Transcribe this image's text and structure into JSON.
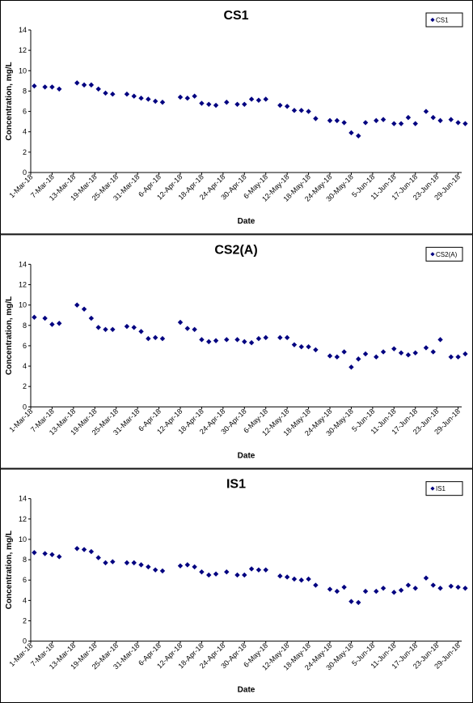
{
  "chart_data": [
    {
      "type": "scatter",
      "title": "CS1",
      "xlabel": "Date",
      "ylabel": "Concentration, mg/L",
      "ylim": [
        0,
        14
      ],
      "yticks": [
        0,
        2,
        4,
        6,
        8,
        10,
        12,
        14
      ],
      "xlim": [
        "2018-03-01",
        "2018-06-30"
      ],
      "xtick_labels": [
        "1-Mar-18",
        "7-Mar-18",
        "13-Mar-18",
        "19-Mar-18",
        "25-Mar-18",
        "31-Mar-18",
        "6-Apr-18",
        "12-Apr-18",
        "18-Apr-18",
        "24-Apr-18",
        "30-Apr-18",
        "6-May-18",
        "12-May-18",
        "18-May-18",
        "24-May-18",
        "30-May-18",
        "5-Jun-18",
        "11-Jun-18",
        "17-Jun-18",
        "23-Jun-18",
        "29-Jun-18"
      ],
      "legend_position": "top-right",
      "marker_color": "#000080",
      "series": [
        {
          "name": "CS1",
          "x": [
            "2018-03-02",
            "2018-03-05",
            "2018-03-07",
            "2018-03-09",
            "2018-03-14",
            "2018-03-16",
            "2018-03-18",
            "2018-03-20",
            "2018-03-22",
            "2018-03-24",
            "2018-03-28",
            "2018-03-30",
            "2018-04-01",
            "2018-04-03",
            "2018-04-05",
            "2018-04-07",
            "2018-04-12",
            "2018-04-14",
            "2018-04-16",
            "2018-04-18",
            "2018-04-20",
            "2018-04-22",
            "2018-04-25",
            "2018-04-28",
            "2018-04-30",
            "2018-05-02",
            "2018-05-04",
            "2018-05-06",
            "2018-05-10",
            "2018-05-12",
            "2018-05-14",
            "2018-05-16",
            "2018-05-18",
            "2018-05-20",
            "2018-05-24",
            "2018-05-26",
            "2018-05-28",
            "2018-05-30",
            "2018-06-01",
            "2018-06-03",
            "2018-06-06",
            "2018-06-08",
            "2018-06-11",
            "2018-06-13",
            "2018-06-15",
            "2018-06-17",
            "2018-06-20",
            "2018-06-22",
            "2018-06-24",
            "2018-06-27",
            "2018-06-29",
            "2018-07-01"
          ],
          "y": [
            8.5,
            8.4,
            8.4,
            8.2,
            8.8,
            8.6,
            8.6,
            8.2,
            7.8,
            7.7,
            7.7,
            7.5,
            7.3,
            7.2,
            7.0,
            6.9,
            7.4,
            7.3,
            7.5,
            6.8,
            6.7,
            6.6,
            6.9,
            6.7,
            6.7,
            7.2,
            7.1,
            7.2,
            6.6,
            6.5,
            6.1,
            6.1,
            6.0,
            5.3,
            5.1,
            5.1,
            4.9,
            3.9,
            3.6,
            4.9,
            5.1,
            5.2,
            4.8,
            4.8,
            5.4,
            4.8,
            6.0,
            5.4,
            5.1,
            5.2,
            4.9,
            4.8
          ]
        }
      ]
    },
    {
      "type": "scatter",
      "title": "CS2(A)",
      "xlabel": "Date",
      "ylabel": "Concentration, mg/L",
      "ylim": [
        0,
        14
      ],
      "yticks": [
        0,
        2,
        4,
        6,
        8,
        10,
        12,
        14
      ],
      "xlim": [
        "2018-03-01",
        "2018-06-30"
      ],
      "xtick_labels": [
        "1-Mar-18",
        "7-Mar-18",
        "13-Mar-18",
        "19-Mar-18",
        "25-Mar-18",
        "31-Mar-18",
        "6-Apr-18",
        "12-Apr-18",
        "18-Apr-18",
        "24-Apr-18",
        "30-Apr-18",
        "6-May-18",
        "12-May-18",
        "18-May-18",
        "24-May-18",
        "30-May-18",
        "5-Jun-18",
        "11-Jun-18",
        "17-Jun-18",
        "23-Jun-18",
        "29-Jun-18"
      ],
      "legend_position": "top-right",
      "marker_color": "#000080",
      "series": [
        {
          "name": "CS2(A)",
          "x": [
            "2018-03-02",
            "2018-03-05",
            "2018-03-07",
            "2018-03-09",
            "2018-03-14",
            "2018-03-16",
            "2018-03-18",
            "2018-03-20",
            "2018-03-22",
            "2018-03-24",
            "2018-03-28",
            "2018-03-30",
            "2018-04-01",
            "2018-04-03",
            "2018-04-05",
            "2018-04-07",
            "2018-04-12",
            "2018-04-14",
            "2018-04-16",
            "2018-04-18",
            "2018-04-20",
            "2018-04-22",
            "2018-04-25",
            "2018-04-28",
            "2018-04-30",
            "2018-05-02",
            "2018-05-04",
            "2018-05-06",
            "2018-05-10",
            "2018-05-12",
            "2018-05-14",
            "2018-05-16",
            "2018-05-18",
            "2018-05-20",
            "2018-05-24",
            "2018-05-26",
            "2018-05-28",
            "2018-05-30",
            "2018-06-01",
            "2018-06-03",
            "2018-06-06",
            "2018-06-08",
            "2018-06-11",
            "2018-06-13",
            "2018-06-15",
            "2018-06-17",
            "2018-06-20",
            "2018-06-22",
            "2018-06-24",
            "2018-06-27",
            "2018-06-29",
            "2018-07-01"
          ],
          "y": [
            8.8,
            8.7,
            8.1,
            8.2,
            10.0,
            9.6,
            8.7,
            7.8,
            7.6,
            7.6,
            7.9,
            7.8,
            7.4,
            6.7,
            6.8,
            6.7,
            8.3,
            7.7,
            7.6,
            6.6,
            6.4,
            6.5,
            6.6,
            6.6,
            6.4,
            6.3,
            6.7,
            6.8,
            6.8,
            6.8,
            6.1,
            5.9,
            5.9,
            5.6,
            5.0,
            4.9,
            5.4,
            3.9,
            4.7,
            5.2,
            4.9,
            5.4,
            5.7,
            5.3,
            5.1,
            5.3,
            5.8,
            5.4,
            6.6,
            4.9,
            4.9,
            5.2
          ]
        }
      ]
    },
    {
      "type": "scatter",
      "title": "IS1",
      "xlabel": "Date",
      "ylabel": "Concentration, mg/L",
      "ylim": [
        0,
        14
      ],
      "yticks": [
        0,
        2,
        4,
        6,
        8,
        10,
        12,
        14
      ],
      "xlim": [
        "2018-03-01",
        "2018-06-30"
      ],
      "xtick_labels": [
        "1-Mar-18",
        "7-Mar-18",
        "13-Mar-18",
        "19-Mar-18",
        "25-Mar-18",
        "31-Mar-18",
        "6-Apr-18",
        "12-Apr-18",
        "18-Apr-18",
        "24-Apr-18",
        "30-Apr-18",
        "6-May-18",
        "12-May-18",
        "18-May-18",
        "24-May-18",
        "30-May-18",
        "5-Jun-18",
        "11-Jun-18",
        "17-Jun-18",
        "23-Jun-18",
        "29-Jun-18"
      ],
      "legend_position": "top-right",
      "marker_color": "#000080",
      "series": [
        {
          "name": "IS1",
          "x": [
            "2018-03-02",
            "2018-03-05",
            "2018-03-07",
            "2018-03-09",
            "2018-03-14",
            "2018-03-16",
            "2018-03-18",
            "2018-03-20",
            "2018-03-22",
            "2018-03-24",
            "2018-03-28",
            "2018-03-30",
            "2018-04-01",
            "2018-04-03",
            "2018-04-05",
            "2018-04-07",
            "2018-04-12",
            "2018-04-14",
            "2018-04-16",
            "2018-04-18",
            "2018-04-20",
            "2018-04-22",
            "2018-04-25",
            "2018-04-28",
            "2018-04-30",
            "2018-05-02",
            "2018-05-04",
            "2018-05-06",
            "2018-05-10",
            "2018-05-12",
            "2018-05-14",
            "2018-05-16",
            "2018-05-18",
            "2018-05-20",
            "2018-05-24",
            "2018-05-26",
            "2018-05-28",
            "2018-05-30",
            "2018-06-01",
            "2018-06-03",
            "2018-06-06",
            "2018-06-08",
            "2018-06-11",
            "2018-06-13",
            "2018-06-15",
            "2018-06-17",
            "2018-06-20",
            "2018-06-22",
            "2018-06-24",
            "2018-06-27",
            "2018-06-29",
            "2018-07-01"
          ],
          "y": [
            8.7,
            8.6,
            8.5,
            8.3,
            9.1,
            9.0,
            8.8,
            8.2,
            7.7,
            7.8,
            7.7,
            7.7,
            7.5,
            7.3,
            7.0,
            6.9,
            7.4,
            7.5,
            7.3,
            6.8,
            6.5,
            6.6,
            6.8,
            6.5,
            6.5,
            7.1,
            7.0,
            7.0,
            6.4,
            6.3,
            6.1,
            6.0,
            6.1,
            5.5,
            5.1,
            4.9,
            5.3,
            3.9,
            3.8,
            4.9,
            4.9,
            5.2,
            4.8,
            5.0,
            5.5,
            5.2,
            6.2,
            5.5,
            5.2,
            5.4,
            5.3,
            5.2
          ]
        }
      ]
    }
  ]
}
